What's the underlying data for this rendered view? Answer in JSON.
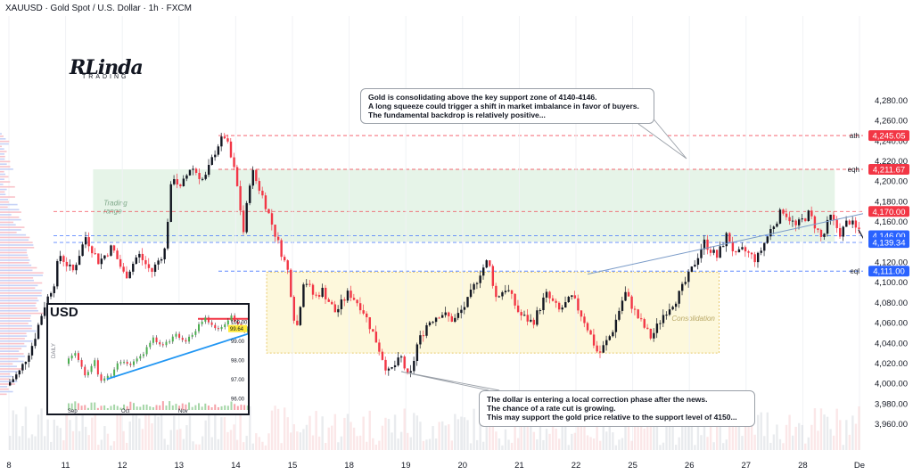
{
  "header": {
    "title": "XAUUSD · Gold Spot / U.S. Dollar · 1h · FXCM"
  },
  "logo": {
    "main": "RLinda",
    "sub": "TRADING"
  },
  "zones": {
    "trading_range": "Trading\nrange",
    "consolidation": "Consolidation"
  },
  "callouts": {
    "top": [
      "Gold is consolidating above the key support zone of 4140-4146.",
      "A long squeeze could trigger a shift in market imbalance in favor of buyers.",
      "The fundamental backdrop is relatively positive..."
    ],
    "bottom": [
      "The dollar is entering a local correction phase after the news.",
      "The chance of a rate cut is growing.",
      "This may support the gold price relative to the support level of 4150..."
    ]
  },
  "colors": {
    "up": "#089981",
    "down": "#f23645",
    "blue": "#2962ff",
    "zone_green": "#e6f4e8",
    "zone_yellow": "#fdf8dc",
    "arrow_green": "#7dd88c"
  },
  "chart_data": [
    {
      "type": "candlestick",
      "symbol": "XAUUSD",
      "timeframe": "1h",
      "ylim": [
        3950,
        4295
      ],
      "yticks": [
        3960,
        3980,
        4000,
        4020,
        4040,
        4060,
        4080,
        4100,
        4120,
        4140,
        4160,
        4180,
        4200,
        4220,
        4240,
        4260,
        4280
      ],
      "xticks": [
        "8",
        "11",
        "12",
        "13",
        "14",
        "15",
        "18",
        "19",
        "20",
        "21",
        "22",
        "25",
        "26",
        "27",
        "28",
        "De"
      ],
      "levels": [
        {
          "value": 4245.05,
          "label": "4,245.05",
          "tag": "ath",
          "color": "#f23645"
        },
        {
          "value": 4211.67,
          "label": "4,211.67",
          "tag": "eqh",
          "color": "#f23645"
        },
        {
          "value": 4170.0,
          "label": "4,170.00",
          "tag": "",
          "color": "#f23645"
        },
        {
          "value": 4146.0,
          "label": "4,146.00",
          "tag": "",
          "color": "#2962ff"
        },
        {
          "value": 4139.34,
          "label": "4,139.34",
          "tag": "",
          "color": "#2962ff"
        },
        {
          "value": 4111.0,
          "label": "4,111.00",
          "tag": "eql",
          "color": "#2962ff"
        }
      ],
      "path": [
        [
          0,
          3998
        ],
        [
          0.5,
          4012
        ],
        [
          1,
          4040
        ],
        [
          1.4,
          4075
        ],
        [
          1.8,
          4100
        ],
        [
          2,
          4128
        ],
        [
          2.5,
          4110
        ],
        [
          3,
          4145
        ],
        [
          3.5,
          4120
        ],
        [
          4,
          4135
        ],
        [
          4.5,
          4105
        ],
        [
          5,
          4128
        ],
        [
          5.5,
          4110
        ],
        [
          6,
          4132
        ],
        [
          6.3,
          4208
        ],
        [
          6.6,
          4192
        ],
        [
          7,
          4215
        ],
        [
          7.5,
          4200
        ],
        [
          8,
          4235
        ],
        [
          8.3,
          4245
        ],
        [
          8.7,
          4205
        ],
        [
          9,
          4150
        ],
        [
          9.3,
          4212
        ],
        [
          9.8,
          4180
        ],
        [
          10.3,
          4140
        ],
        [
          10.7,
          4110
        ],
        [
          11,
          4050
        ],
        [
          11.3,
          4105
        ],
        [
          11.7,
          4085
        ],
        [
          12,
          4092
        ],
        [
          12.5,
          4070
        ],
        [
          13,
          4090
        ],
        [
          13.5,
          4075
        ],
        [
          14,
          4045
        ],
        [
          14.5,
          4010
        ],
        [
          15,
          4025
        ],
        [
          15.3,
          4002
        ],
        [
          15.6,
          4038
        ],
        [
          16,
          4060
        ],
        [
          16.5,
          4070
        ],
        [
          17,
          4062
        ],
        [
          17.5,
          4080
        ],
        [
          18,
          4110
        ],
        [
          18.3,
          4122
        ],
        [
          18.6,
          4085
        ],
        [
          19,
          4095
        ],
        [
          19.5,
          4068
        ],
        [
          20,
          4060
        ],
        [
          20.5,
          4088
        ],
        [
          21,
          4072
        ],
        [
          21.5,
          4085
        ],
        [
          22,
          4060
        ],
        [
          22.5,
          4028
        ],
        [
          23,
          4050
        ],
        [
          23.5,
          4090
        ],
        [
          24,
          4065
        ],
        [
          24.5,
          4045
        ],
        [
          25,
          4070
        ],
        [
          25.5,
          4085
        ],
        [
          26,
          4110
        ],
        [
          26.5,
          4140
        ],
        [
          27,
          4125
        ],
        [
          27.4,
          4148
        ],
        [
          27.7,
          4125
        ],
        [
          28,
          4132
        ],
        [
          28.5,
          4122
        ],
        [
          29,
          4150
        ],
        [
          29.5,
          4172
        ],
        [
          30,
          4155
        ],
        [
          30.5,
          4168
        ],
        [
          31,
          4142
        ],
        [
          31.3,
          4165
        ],
        [
          31.7,
          4148
        ],
        [
          32,
          4162
        ],
        [
          32.3,
          4152
        ]
      ],
      "projection": [
        [
          32.3,
          4152
        ],
        [
          32.6,
          4138
        ],
        [
          32.9,
          4158
        ],
        [
          33.1,
          4150
        ],
        [
          33.6,
          4208
        ]
      ],
      "daily_trend_points": [
        [
          22,
          4108
        ],
        [
          33.2,
          4172
        ]
      ]
    },
    {
      "type": "candlestick",
      "title": "USD",
      "timeframe": "daily",
      "ylabel": "DAILY",
      "yticks": [
        96.0,
        97.0,
        98.0,
        99.0,
        100.0
      ],
      "ylim": [
        95.7,
        100.4
      ],
      "xticks": [
        "Sep",
        "Oct",
        "Nov"
      ],
      "last_price": "99.64",
      "resistance": 100.15,
      "path": [
        [
          0,
          97.8
        ],
        [
          3,
          98.4
        ],
        [
          6,
          97.3
        ],
        [
          9,
          97.9
        ],
        [
          11,
          96.8
        ],
        [
          14,
          97.2
        ],
        [
          17,
          98.0
        ],
        [
          20,
          97.8
        ],
        [
          24,
          98.4
        ],
        [
          27,
          99.1
        ],
        [
          30,
          98.7
        ],
        [
          34,
          99.4
        ],
        [
          37,
          99.0
        ],
        [
          40,
          99.6
        ],
        [
          43,
          100.1
        ],
        [
          47,
          99.6
        ],
        [
          51,
          100.2
        ],
        [
          54,
          99.6
        ],
        [
          57,
          99.64
        ]
      ],
      "trend_points": [
        [
          12,
          97.0
        ],
        [
          58,
          99.5
        ]
      ]
    }
  ]
}
